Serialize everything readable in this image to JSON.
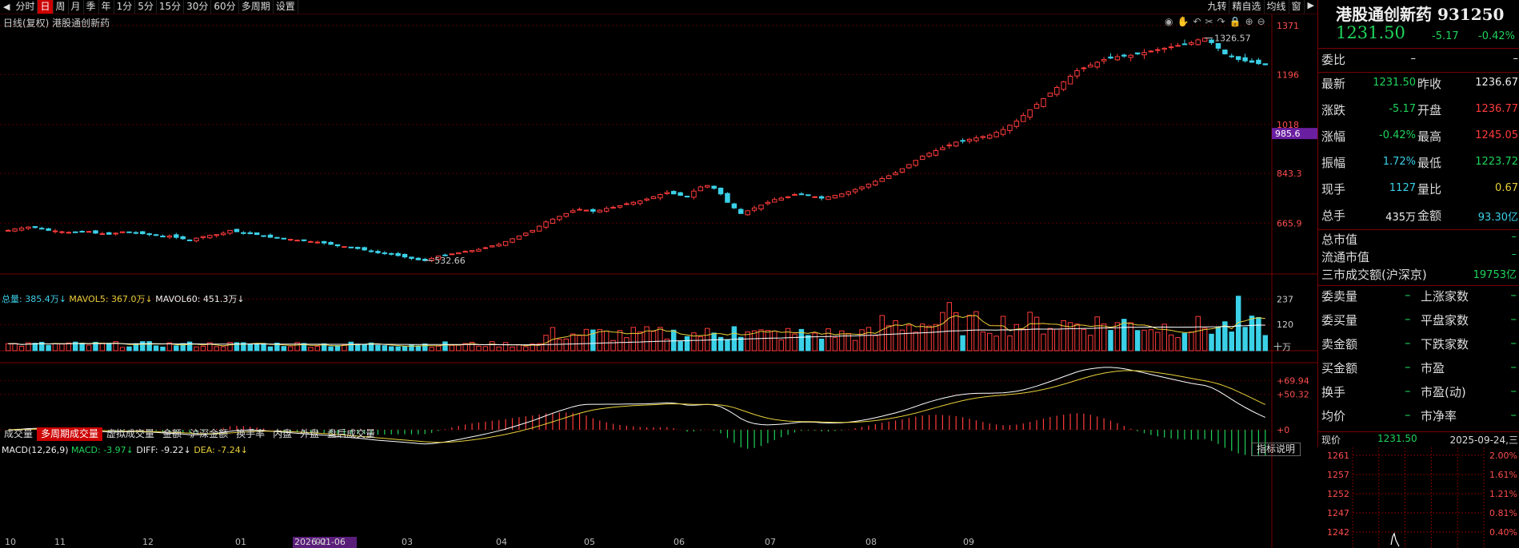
{
  "toolbar": {
    "left_arrow": "◀",
    "items": [
      "分时",
      "日",
      "周",
      "月",
      "季",
      "年",
      "1分",
      "5分",
      "15分",
      "30分",
      "60分",
      "多周期",
      "设置"
    ],
    "active_index": 1,
    "right_items": [
      "九转",
      "精自选",
      "均线",
      "窗"
    ],
    "right_arrow": "▶"
  },
  "chart": {
    "subtitle": "日线(复权)  港股通创新药",
    "price_axis": [
      "1371",
      "1196",
      "1018",
      "843.3",
      "665.9"
    ],
    "price_axis_values": [
      1371,
      1196,
      1018,
      843.3,
      665.9
    ],
    "current_price_tag": "985.6",
    "current_price_tag_value": 985.6,
    "high_label": "1326.57",
    "high_value": 1326.57,
    "low_label": "532.66",
    "low_value": 532.66,
    "volume_label": {
      "total": "总量: 385.4万↓",
      "mavol5": "MAVOL5: 367.0万↓",
      "mavol60": "MAVOL60: 451.3万↓"
    },
    "volume_axis": [
      "237",
      "120",
      "十万"
    ],
    "volume_axis_values": [
      237,
      120
    ],
    "macd_label": {
      "name": "MACD(12,26,9)",
      "macd": "MACD: -3.97↓",
      "diff": "DIFF: -9.22↓",
      "dea": "DEA: -7.24↓"
    },
    "macd_axis": [
      "+69.94",
      "+50.32",
      "+0"
    ],
    "macd_axis_values": [
      69.94,
      50.32,
      0
    ],
    "months": [
      "10",
      "11",
      "12",
      "01",
      "02",
      "03",
      "04",
      "05",
      "06",
      "07",
      "08",
      "09"
    ],
    "highlight_date": "2026-01-06",
    "indicator_button": "指标说明",
    "colors": {
      "up": "#ff3b3b",
      "down": "#3ad1e8",
      "ma5": "#e8d03a",
      "ma60": "#ffffff"
    }
  },
  "tabs": [
    "成交量",
    "多周期成交量",
    "虚拟成交量",
    "金额",
    "沪深金额",
    "换手率",
    "内盘",
    "外盘",
    "盘后成交量"
  ],
  "tabs_active_index": 1,
  "chart_data": {
    "type": "candlestick",
    "series": [
      {
        "name": "港股通创新药",
        "values": [
          640,
          645,
          648,
          652,
          650,
          645,
          640,
          638,
          635,
          633,
          632,
          634,
          636,
          630,
          628,
          626,
          630,
          635,
          633,
          631,
          628,
          625,
          622,
          618,
          620,
          615,
          610,
          605,
          612,
          618,
          622,
          625,
          630,
          640,
          635,
          630,
          628,
          625,
          620,
          615,
          612,
          610,
          608,
          605,
          603,
          600,
          598,
          595,
          590,
          585,
          582,
          580,
          575,
          570,
          565,
          560,
          558,
          555,
          550,
          545,
          540,
          535,
          532,
          540,
          548,
          552,
          556,
          560,
          565,
          568,
          572,
          578,
          585,
          590,
          600,
          610,
          620,
          630,
          640,
          655,
          670,
          680,
          690,
          700,
          710,
          715,
          712,
          708,
          712,
          718,
          722,
          728,
          735,
          740,
          745,
          752,
          760,
          768,
          775,
          770,
          765,
          760,
          780,
          795,
          800,
          790,
          770,
          740,
          720,
          700,
          710,
          720,
          730,
          740,
          750,
          755,
          760,
          768,
          770,
          765,
          760,
          755,
          760,
          765,
          770,
          778,
          786,
          795,
          805,
          815,
          825,
          835,
          845,
          860,
          875,
          890,
          905,
          915,
          925,
          935,
          945,
          955,
          960,
          965,
          970,
          975,
          980,
          990,
          1000,
          1015,
          1030,
          1050,
          1070,
          1090,
          1110,
          1130,
          1150,
          1170,
          1190,
          1210,
          1220,
          1230,
          1240,
          1250,
          1255,
          1260,
          1262,
          1265,
          1270,
          1275,
          1280,
          1285,
          1290,
          1295,
          1300,
          1305,
          1310,
          1320,
          1326,
          1310,
          1290,
          1270,
          1260,
          1250,
          1245,
          1240,
          1235,
          1231
        ]
      }
    ],
    "ylim": [
      532.66,
      1371
    ]
  }
}
